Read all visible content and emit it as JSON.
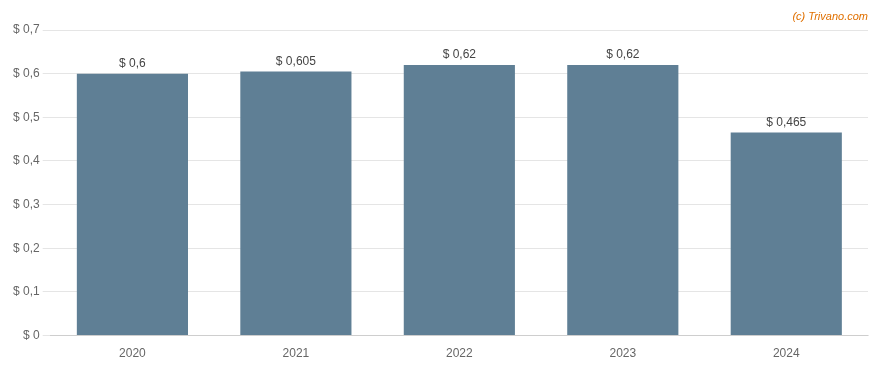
{
  "chart_data": {
    "type": "bar",
    "categories": [
      "2020",
      "2021",
      "2022",
      "2023",
      "2024"
    ],
    "values": [
      0.6,
      0.605,
      0.62,
      0.62,
      0.465
    ],
    "value_labels": [
      "$ 0,6",
      "$ 0,605",
      "$ 0,62",
      "$ 0,62",
      "$ 0,465"
    ],
    "data_labels": true,
    "color": "#5f7f95",
    "ylim": [
      0,
      0.7
    ],
    "yticks": [
      {
        "value": 0.0,
        "label": "$ 0"
      },
      {
        "value": 0.1,
        "label": "$ 0,1"
      },
      {
        "value": 0.2,
        "label": "$ 0,2"
      },
      {
        "value": 0.3,
        "label": "$ 0,3"
      },
      {
        "value": 0.4,
        "label": "$ 0,4"
      },
      {
        "value": 0.5,
        "label": "$ 0,5"
      },
      {
        "value": 0.6,
        "label": "$ 0,6"
      },
      {
        "value": 0.7,
        "label": "$ 0,7"
      }
    ],
    "grid": true,
    "annotations": [
      "(c) Trivano.com"
    ]
  }
}
